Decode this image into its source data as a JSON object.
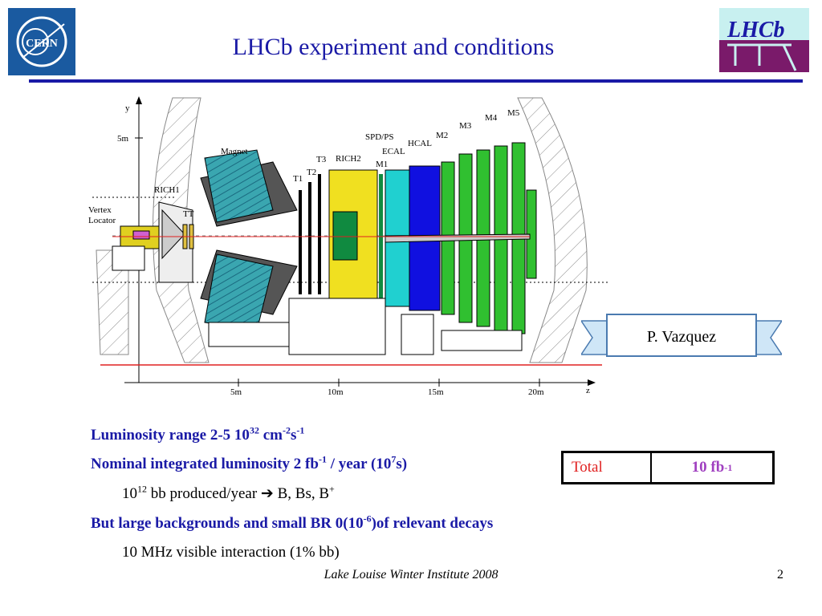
{
  "header": {
    "title": "LHCb experiment and conditions",
    "cern_logo_text": "CERN",
    "lhcb_logo_text": "LHCb"
  },
  "diagram": {
    "axis_y": "y",
    "axis_z": "z",
    "y_tick": "5m",
    "z_ticks": [
      "5m",
      "10m",
      "15m",
      "20m"
    ],
    "labels": {
      "magnet": "Magnet",
      "rich1": "RICH1",
      "vertex": "Vertex",
      "locator": "Locator",
      "tt": "TT",
      "t1": "T1",
      "t2": "T2",
      "t3": "T3",
      "rich2": "RICH2",
      "m1": "M1",
      "spd_ps": "SPD/PS",
      "ecal": "ECAL",
      "hcal": "HCAL",
      "m2": "M2",
      "m3": "M3",
      "m4": "M4",
      "m5": "M5"
    }
  },
  "credit": "P. Vazquez",
  "bullets": {
    "lum_text": "Luminosity range 2-5 10",
    "lum_exp": "32",
    "lum_unit": " cm",
    "lum_unit_exp1": "-2",
    "lum_s": "s",
    "lum_unit_exp2": "-1",
    "nom_text": "Nominal integrated luminosity 2 fb",
    "nom_exp": "-1",
    "nom_mid": " / year (10",
    "nom_exp2": "7",
    "nom_end": "s)",
    "sub1_a": "10",
    "sub1_exp": "12",
    "sub1_b": " bb produced/year ",
    "sub1_arrow": "➔",
    "sub1_c": " B, Bs, B",
    "sub1_exp2": "+",
    "bg_text": "But large backgrounds and small BR 0(10",
    "bg_exp": "-6",
    "bg_end": ")of relevant decays",
    "sub2": "10 MHz visible interaction (1% bb)"
  },
  "table": {
    "label": "Total",
    "value": "10 fb",
    "value_exp": "-1"
  },
  "footer": {
    "text": "Lake Louise Winter Institute 2008",
    "page": "2"
  },
  "colors": {
    "title": "#1a1aa6",
    "magnet": "#3aa6b0",
    "rich2": "#f0e020",
    "ecal": "#20d0d0",
    "hcal": "#1010e0",
    "muon": "#30c030",
    "beamline": "#e02020"
  }
}
